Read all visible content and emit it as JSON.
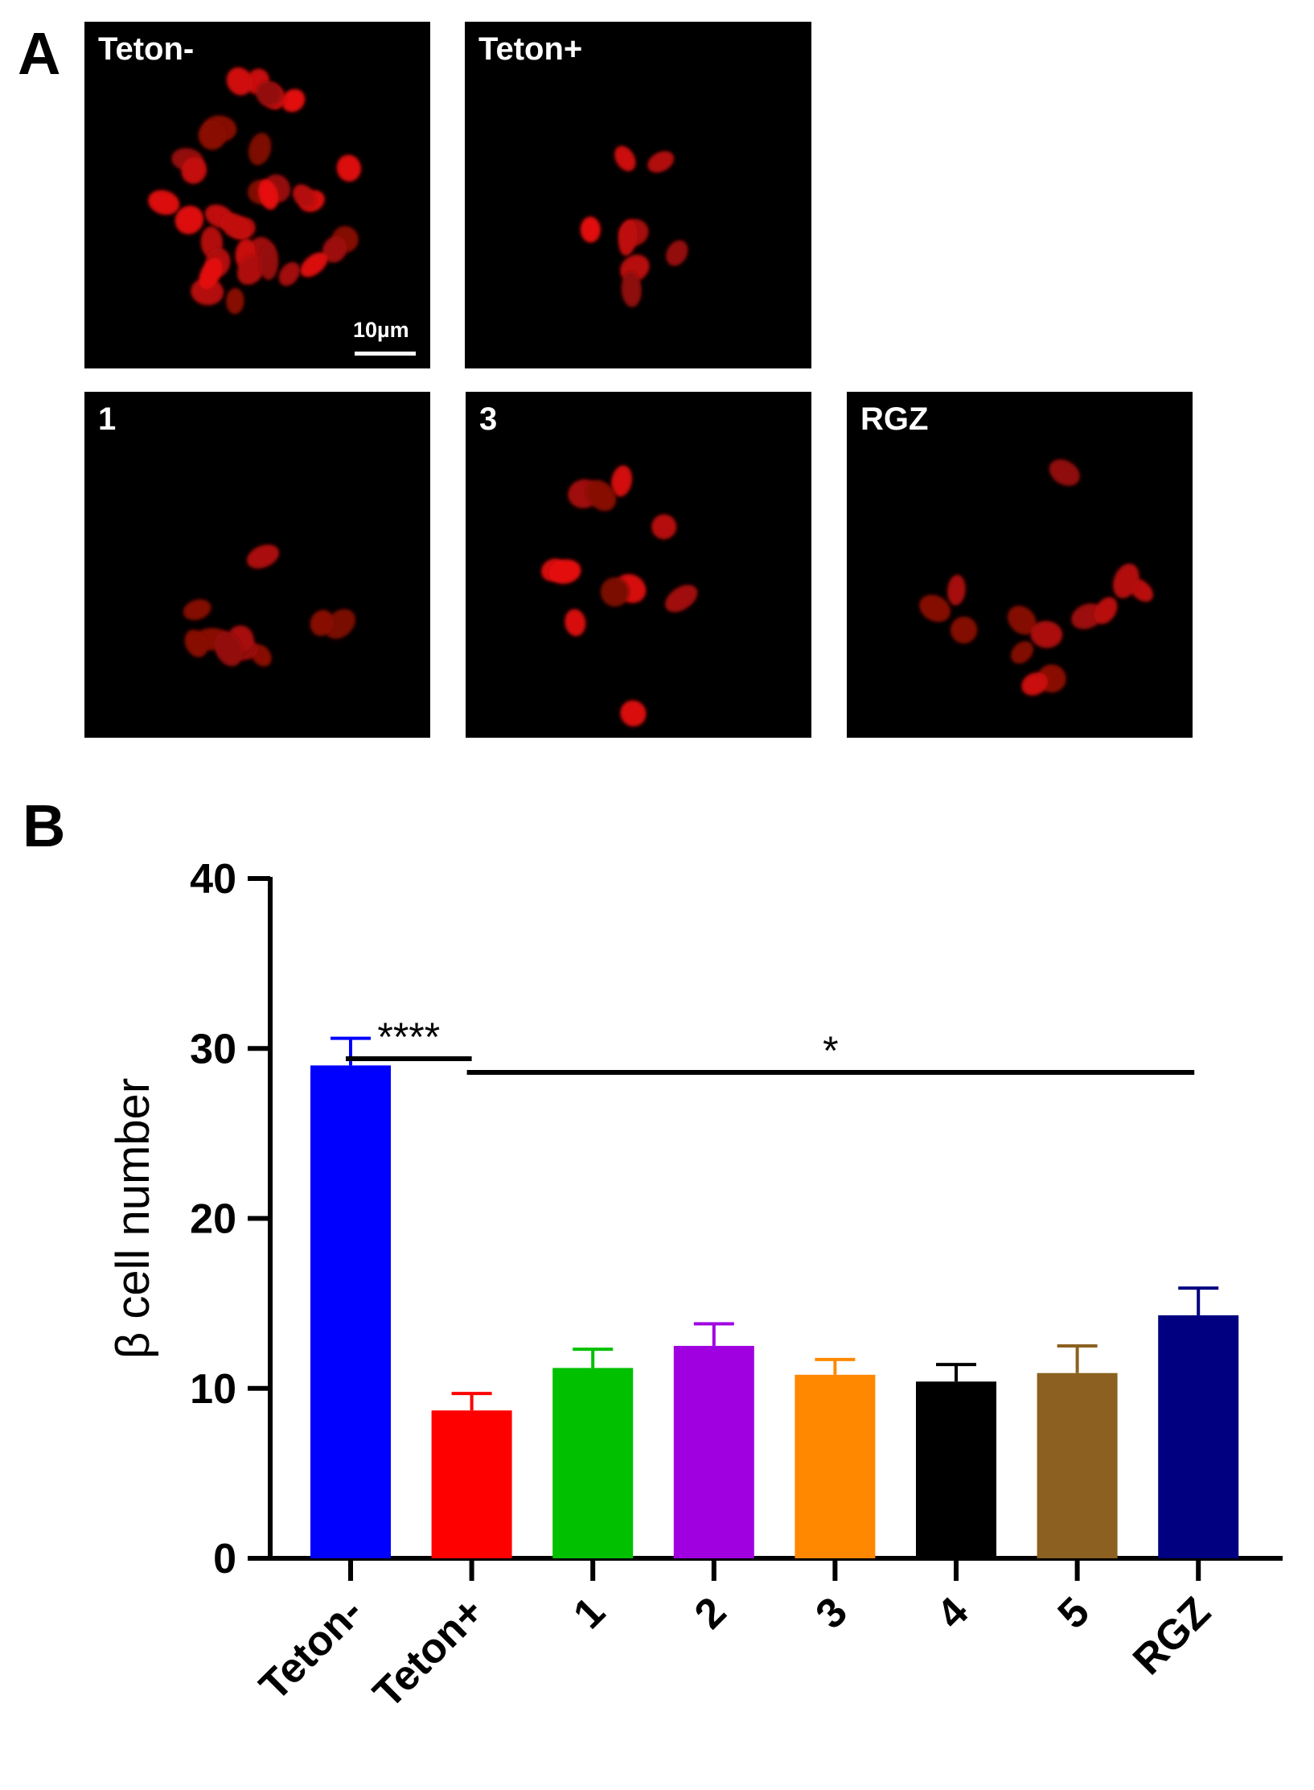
{
  "figure": {
    "panel_a_letter": "A",
    "panel_b_letter": "B",
    "scale_bar_label": "10µm"
  },
  "micrographs": [
    {
      "label": "Teton-",
      "cells": 34
    },
    {
      "label": "Teton+",
      "cells": 8
    },
    {
      "label": "1",
      "cells": 11
    },
    {
      "label": "3",
      "cells": 11
    },
    {
      "label": "RGZ",
      "cells": 13
    }
  ],
  "chart_data": {
    "type": "bar",
    "ylabel": "β cell number",
    "xlabel": "",
    "ylim": [
      0,
      40
    ],
    "yticks": [
      0,
      10,
      20,
      30,
      40
    ],
    "categories": [
      "Teton-",
      "Teton+",
      "1",
      "2",
      "3",
      "4",
      "5",
      "RGZ"
    ],
    "values": [
      29.0,
      8.7,
      11.2,
      12.5,
      10.8,
      10.4,
      10.9,
      14.3
    ],
    "errors": [
      1.6,
      1.0,
      1.1,
      1.3,
      0.9,
      1.0,
      1.6,
      1.6
    ],
    "colors": [
      "#0000ff",
      "#ff0000",
      "#00c000",
      "#a000e0",
      "#ff8800",
      "#000000",
      "#8b6020",
      "#000080"
    ],
    "significance": [
      {
        "label": "****",
        "from": "Teton-",
        "to": "Teton+"
      },
      {
        "label": "*",
        "from": "Teton+",
        "to": "RGZ"
      }
    ]
  }
}
